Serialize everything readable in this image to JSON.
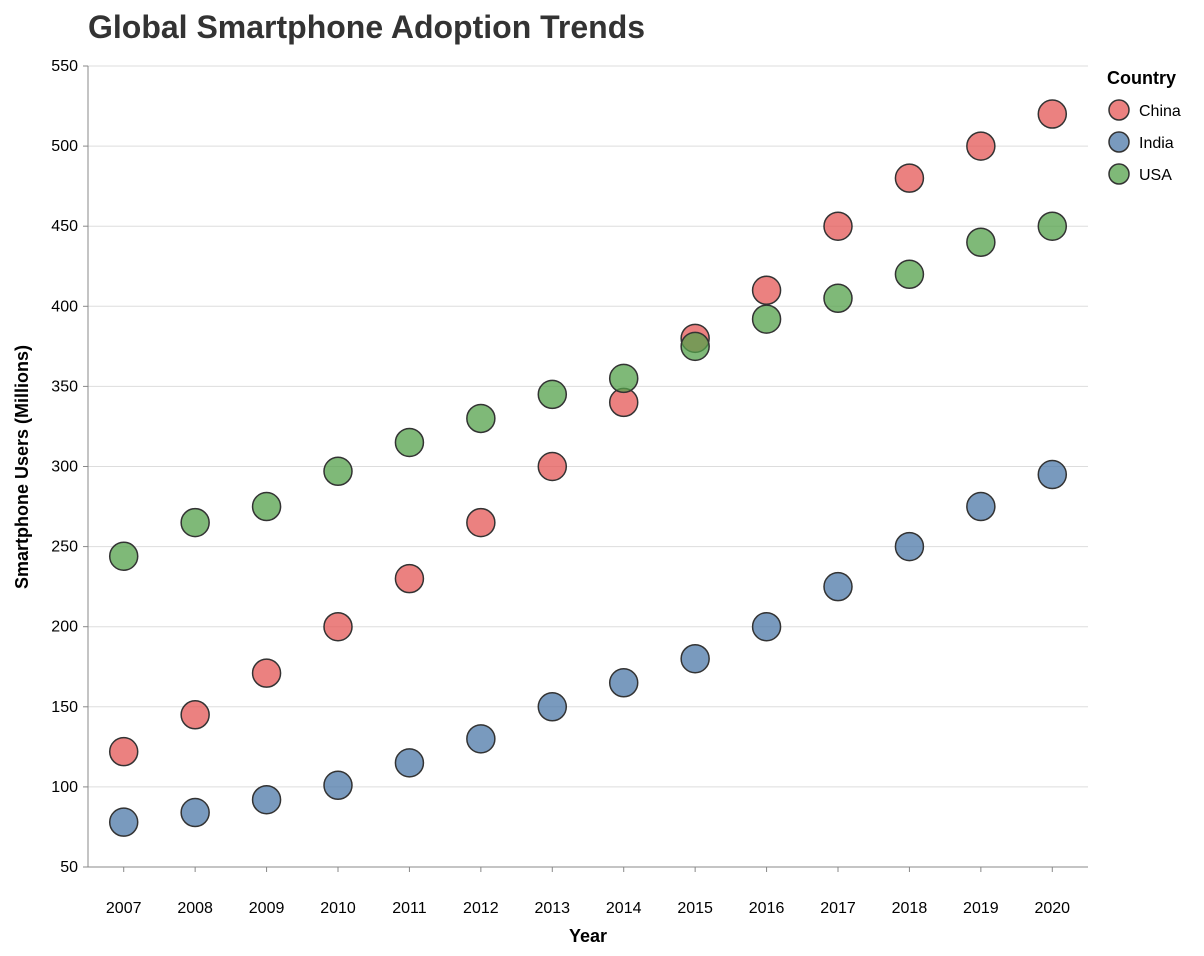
{
  "chart_data": {
    "type": "scatter",
    "title": "Global Smartphone Adoption Trends",
    "xlabel": "Year",
    "ylabel": "Smartphone Users (Millions)",
    "x": [
      2007,
      2008,
      2009,
      2010,
      2011,
      2012,
      2013,
      2014,
      2015,
      2016,
      2017,
      2018,
      2019,
      2020
    ],
    "ylim": [
      50,
      550
    ],
    "yticks": [
      50,
      100,
      150,
      200,
      250,
      300,
      350,
      400,
      450,
      500,
      550
    ],
    "grid": true,
    "legend": {
      "title": "Country",
      "position": "top-right"
    },
    "series": [
      {
        "name": "China",
        "color": "#e45756",
        "values": [
          122,
          145,
          171,
          200,
          230,
          265,
          300,
          340,
          380,
          410,
          450,
          480,
          500,
          520
        ]
      },
      {
        "name": "India",
        "color": "#4c78a8",
        "values": [
          78,
          84,
          92,
          101,
          115,
          130,
          150,
          165,
          180,
          200,
          225,
          250,
          275,
          295
        ]
      },
      {
        "name": "USA",
        "color": "#54a24b",
        "values": [
          244,
          265,
          275,
          297,
          315,
          330,
          345,
          355,
          375,
          392,
          405,
          420,
          440,
          450
        ]
      }
    ]
  }
}
